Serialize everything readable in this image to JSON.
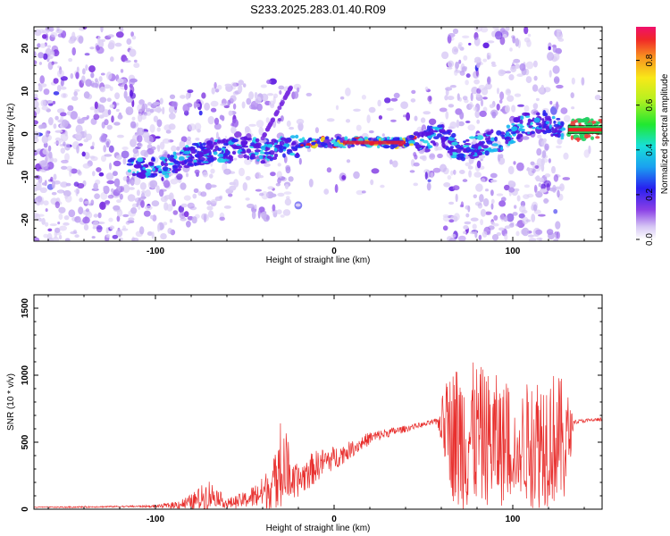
{
  "title": "S233.2025.283.01.40.R09",
  "colors": {
    "snr_line": "#e8302e",
    "frame": "#000000",
    "spectrogram_low": "#cbb6f2",
    "spectrogram_mid": "#7a2fe0",
    "spectrogram_band": "#28d6e8",
    "spectrogram_peak": "#e8182e"
  },
  "chart_data": [
    {
      "type": "heatmap",
      "name": "spectrogram",
      "xlabel": "Height of straight line (km)",
      "ylabel": "Frequency (Hz)",
      "xlim": [
        -168,
        150
      ],
      "ylim": [
        -25,
        25
      ],
      "xticks": [
        -100,
        0,
        100
      ],
      "yticks": [
        -20,
        -10,
        0,
        10,
        20
      ],
      "xtick_labels": [
        "-100",
        "0",
        "100"
      ],
      "ytick_labels": [
        "-20",
        "-10",
        "0",
        "10",
        "20"
      ],
      "dominant_ridge": [
        {
          "x": -110,
          "y": -8
        },
        {
          "x": -95,
          "y": -8
        },
        {
          "x": -80,
          "y": -5
        },
        {
          "x": -65,
          "y": -4
        },
        {
          "x": -50,
          "y": -3
        },
        {
          "x": -40,
          "y": -4
        },
        {
          "x": -25,
          "y": -3
        },
        {
          "x": -15,
          "y": -2
        },
        {
          "x": 0,
          "y": -2
        },
        {
          "x": 20,
          "y": -2
        },
        {
          "x": 40,
          "y": -2
        },
        {
          "x": 50,
          "y": -1
        },
        {
          "x": 60,
          "y": 0
        },
        {
          "x": 70,
          "y": -4
        },
        {
          "x": 95,
          "y": -1
        },
        {
          "x": 105,
          "y": 2
        },
        {
          "x": 115,
          "y": 3
        },
        {
          "x": 130,
          "y": 1
        },
        {
          "x": 150,
          "y": 1
        }
      ],
      "colorbar": {
        "label": "Normalized spectral amplitude",
        "range": [
          0.0,
          0.95
        ],
        "ticks": [
          0.0,
          0.2,
          0.4,
          0.6,
          0.8
        ],
        "tick_labels": [
          "0.0",
          "0.2",
          "0.4",
          "0.6",
          "0.8"
        ]
      }
    },
    {
      "type": "line",
      "name": "snr",
      "xlabel": "Height of straight line (km)",
      "ylabel": "SNR (10 * v/v)",
      "xlim": [
        -168,
        150
      ],
      "ylim": [
        0,
        1600
      ],
      "xticks": [
        -100,
        0,
        100
      ],
      "yticks": [
        0,
        500,
        1000,
        1500
      ],
      "xtick_labels": [
        "-100",
        "0",
        "100"
      ],
      "ytick_labels": [
        "0",
        "500",
        "1000",
        "1500"
      ],
      "series": [
        {
          "name": "SNR",
          "x": [
            -168,
            -150,
            -120,
            -100,
            -90,
            -80,
            -75,
            -70,
            -65,
            -60,
            -50,
            -40,
            -35,
            -30,
            -27,
            -25,
            -20,
            -15,
            -10,
            -5,
            0,
            10,
            20,
            30,
            40,
            45,
            50,
            55,
            58,
            62,
            67,
            70,
            75,
            80,
            85,
            90,
            95,
            100,
            103,
            105,
            110,
            115,
            120,
            125,
            130,
            134,
            140,
            150
          ],
          "mean": [
            15,
            15,
            20,
            22,
            30,
            50,
            80,
            110,
            90,
            40,
            70,
            120,
            180,
            260,
            300,
            230,
            210,
            270,
            320,
            360,
            380,
            450,
            530,
            570,
            600,
            620,
            630,
            650,
            650,
            640,
            560,
            520,
            530,
            560,
            530,
            500,
            480,
            520,
            320,
            480,
            500,
            520,
            540,
            520,
            480,
            650,
            660,
            670
          ],
          "spread": [
            4,
            5,
            6,
            8,
            25,
            60,
            90,
            120,
            60,
            40,
            60,
            120,
            180,
            250,
            300,
            150,
            120,
            130,
            120,
            100,
            90,
            60,
            50,
            35,
            25,
            20,
            20,
            20,
            30,
            300,
            520,
            600,
            560,
            540,
            500,
            520,
            450,
            450,
            150,
            400,
            500,
            520,
            520,
            500,
            450,
            15,
            15,
            15
          ]
        }
      ]
    }
  ]
}
